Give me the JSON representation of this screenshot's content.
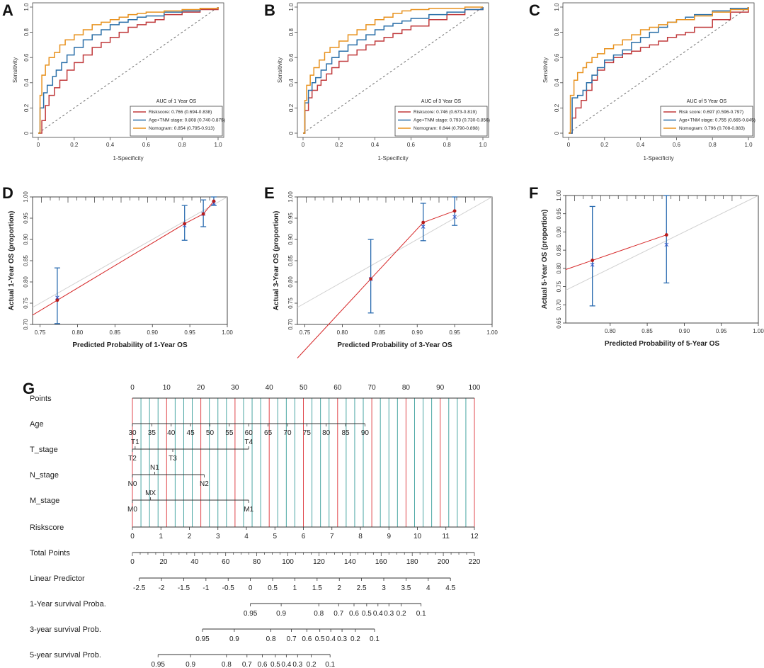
{
  "colors": {
    "risk": "#c0393b",
    "age": "#2a6fa8",
    "nomo": "#e8921f",
    "cal_line": "#d62728",
    "cal_bar": "#2b6cb0",
    "ideal": "#d0d0d0",
    "nomo_red": "#e0474c",
    "nomo_teal": "#4aa6a3"
  },
  "roc": [
    {
      "panel": "A",
      "ylabel": "Sensitivity",
      "xlabel": "1-Specificity",
      "legend_title": "AUC of 1 Year OS",
      "ticks": [
        "0",
        "0.2",
        "0.4",
        "0.6",
        "0.8",
        "1.0"
      ],
      "series": [
        {
          "key": "risk",
          "label": "Riskscore: 0.766 (0.694-0.838)",
          "x": [
            0,
            0.02,
            0.04,
            0.06,
            0.09,
            0.12,
            0.16,
            0.2,
            0.25,
            0.3,
            0.35,
            0.4,
            0.45,
            0.5,
            0.55,
            0.6,
            0.65,
            0.7,
            0.8,
            0.9,
            1.0
          ],
          "y": [
            0,
            0.1,
            0.22,
            0.3,
            0.36,
            0.42,
            0.5,
            0.56,
            0.62,
            0.68,
            0.72,
            0.76,
            0.8,
            0.84,
            0.86,
            0.88,
            0.9,
            0.94,
            0.96,
            0.98,
            1.0
          ]
        },
        {
          "key": "age",
          "label": "Age+TNM stage: 0.808 (0.740-0.875)",
          "x": [
            0,
            0.01,
            0.03,
            0.05,
            0.08,
            0.1,
            0.13,
            0.16,
            0.2,
            0.25,
            0.3,
            0.35,
            0.4,
            0.45,
            0.5,
            0.55,
            0.6,
            0.7,
            0.8,
            0.9,
            1.0
          ],
          "y": [
            0,
            0.2,
            0.32,
            0.38,
            0.45,
            0.5,
            0.56,
            0.62,
            0.68,
            0.74,
            0.78,
            0.82,
            0.86,
            0.88,
            0.9,
            0.92,
            0.93,
            0.96,
            0.97,
            0.99,
            1.0
          ]
        },
        {
          "key": "nomo",
          "label": "Nomogram: 0.854 (0.795-0.913)",
          "x": [
            0,
            0.01,
            0.02,
            0.04,
            0.06,
            0.09,
            0.12,
            0.15,
            0.2,
            0.25,
            0.3,
            0.35,
            0.4,
            0.45,
            0.5,
            0.55,
            0.6,
            0.7,
            0.8,
            0.9,
            1.0
          ],
          "y": [
            0,
            0.3,
            0.46,
            0.54,
            0.6,
            0.64,
            0.7,
            0.74,
            0.78,
            0.82,
            0.86,
            0.88,
            0.9,
            0.92,
            0.94,
            0.95,
            0.96,
            0.97,
            0.98,
            0.99,
            1.0
          ]
        }
      ]
    },
    {
      "panel": "B",
      "ylabel": "Sensitivity",
      "xlabel": "1-Specificity",
      "legend_title": "AUC of 3 Year OS",
      "ticks": [
        "0",
        "0.2",
        "0.4",
        "0.6",
        "0.8",
        "1.0"
      ],
      "series": [
        {
          "key": "risk",
          "label": "Riskscore: 0.746 (0.673-0.819)",
          "x": [
            0,
            0.01,
            0.03,
            0.05,
            0.08,
            0.1,
            0.13,
            0.16,
            0.2,
            0.25,
            0.3,
            0.35,
            0.4,
            0.45,
            0.5,
            0.55,
            0.6,
            0.7,
            0.8,
            0.9,
            1.0
          ],
          "y": [
            0,
            0.18,
            0.28,
            0.34,
            0.38,
            0.42,
            0.47,
            0.52,
            0.57,
            0.62,
            0.66,
            0.7,
            0.73,
            0.76,
            0.79,
            0.82,
            0.85,
            0.9,
            0.94,
            0.98,
            1.0
          ]
        },
        {
          "key": "age",
          "label": "Age+TNM stage: 0.793 (0.730-0.856)",
          "x": [
            0,
            0.01,
            0.03,
            0.05,
            0.07,
            0.1,
            0.13,
            0.16,
            0.2,
            0.25,
            0.3,
            0.35,
            0.4,
            0.45,
            0.5,
            0.55,
            0.6,
            0.7,
            0.8,
            0.9,
            1.0
          ],
          "y": [
            0,
            0.24,
            0.34,
            0.4,
            0.44,
            0.5,
            0.55,
            0.6,
            0.65,
            0.7,
            0.74,
            0.78,
            0.82,
            0.85,
            0.87,
            0.89,
            0.91,
            0.94,
            0.96,
            0.98,
            1.0
          ]
        },
        {
          "key": "nomo",
          "label": "Nomogram: 0.844 (0.790-0.898)",
          "x": [
            0,
            0.01,
            0.02,
            0.04,
            0.06,
            0.09,
            0.12,
            0.15,
            0.2,
            0.25,
            0.3,
            0.35,
            0.4,
            0.45,
            0.5,
            0.55,
            0.6,
            0.7,
            0.8,
            0.9,
            1.0
          ],
          "y": [
            0,
            0.26,
            0.38,
            0.46,
            0.52,
            0.58,
            0.64,
            0.68,
            0.73,
            0.78,
            0.82,
            0.86,
            0.9,
            0.92,
            0.95,
            0.97,
            0.98,
            0.99,
            0.99,
            1.0,
            1.0
          ]
        }
      ]
    },
    {
      "panel": "C",
      "ylabel": "Sensitivity",
      "xlabel": "1-Specificity",
      "legend_title": "AUC of 5 Year OS",
      "ticks": [
        "0",
        "0.2",
        "0.4",
        "0.6",
        "0.8",
        "1.0"
      ],
      "series": [
        {
          "key": "risk",
          "label": "Risk score: 0.697 (0.596-0.797)",
          "x": [
            0,
            0.02,
            0.04,
            0.07,
            0.1,
            0.13,
            0.16,
            0.2,
            0.25,
            0.3,
            0.35,
            0.4,
            0.45,
            0.5,
            0.55,
            0.6,
            0.65,
            0.7,
            0.8,
            0.9,
            1.0
          ],
          "y": [
            0,
            0.12,
            0.2,
            0.26,
            0.34,
            0.42,
            0.5,
            0.56,
            0.6,
            0.63,
            0.65,
            0.68,
            0.7,
            0.73,
            0.76,
            0.78,
            0.8,
            0.84,
            0.9,
            0.96,
            1.0
          ]
        },
        {
          "key": "age",
          "label": "Age+TNM stage: 0.755 (0.665-0.845)",
          "x": [
            0,
            0.02,
            0.05,
            0.08,
            0.1,
            0.13,
            0.16,
            0.2,
            0.25,
            0.3,
            0.35,
            0.4,
            0.45,
            0.5,
            0.55,
            0.6,
            0.65,
            0.7,
            0.8,
            0.9,
            1.0
          ],
          "y": [
            0,
            0.28,
            0.3,
            0.34,
            0.4,
            0.46,
            0.52,
            0.58,
            0.62,
            0.66,
            0.72,
            0.76,
            0.8,
            0.84,
            0.88,
            0.9,
            0.92,
            0.94,
            0.97,
            0.99,
            1.0
          ]
        },
        {
          "key": "nomo",
          "label": "Nomogram: 0.796 (0.708-0.883)",
          "x": [
            0,
            0.01,
            0.03,
            0.05,
            0.08,
            0.1,
            0.13,
            0.16,
            0.2,
            0.25,
            0.3,
            0.35,
            0.4,
            0.45,
            0.5,
            0.55,
            0.6,
            0.7,
            0.8,
            0.9,
            1.0
          ],
          "y": [
            0,
            0.3,
            0.42,
            0.48,
            0.52,
            0.56,
            0.6,
            0.63,
            0.67,
            0.7,
            0.74,
            0.78,
            0.82,
            0.84,
            0.86,
            0.88,
            0.9,
            0.93,
            0.96,
            0.98,
            1.0
          ]
        }
      ]
    }
  ],
  "calibration": [
    {
      "panel": "D",
      "ylabel": "Actual 1-Year OS (proportion)",
      "xlabel": "Predicted Probability of 1-Year OS",
      "xlim": [
        0.74,
        1.0
      ],
      "ylim": [
        0.7,
        1.0
      ],
      "xticks": [
        "0.75",
        "0.80",
        "0.85",
        "0.90",
        "0.95",
        "1.00"
      ],
      "yticks": [
        "0.70",
        "0.75",
        "0.80",
        "0.85",
        "0.90",
        "0.95",
        "1.00"
      ],
      "points": [
        {
          "x": 0.773,
          "y": 0.757,
          "lo": 0.702,
          "hi": 0.833,
          "ex": 0.763
        },
        {
          "x": 0.943,
          "y": 0.937,
          "lo": 0.898,
          "hi": 0.98,
          "ex": 0.933
        },
        {
          "x": 0.968,
          "y": 0.96,
          "lo": 0.93,
          "hi": 0.993,
          "ex": 0.96
        },
        {
          "x": 0.982,
          "y": 0.99,
          "lo": 0.98,
          "hi": 1.0,
          "ex": 0.985
        }
      ]
    },
    {
      "panel": "E",
      "ylabel": "Actual 3-Year OS (proportion)",
      "xlabel": "Predicted Probability of 3-Year OS",
      "xlim": [
        0.74,
        1.0
      ],
      "ylim": [
        0.7,
        1.0
      ],
      "xticks": [
        "0.75",
        "0.80",
        "0.85",
        "0.90",
        "0.95",
        "1.00"
      ],
      "yticks": [
        "0.70",
        "0.75",
        "0.80",
        "0.85",
        "0.90",
        "0.95",
        "1.00"
      ],
      "points": [
        {
          "x": 0.838,
          "y": 0.807,
          "lo": 0.727,
          "hi": 0.9,
          "ex": 0.807
        },
        {
          "x": 0.908,
          "y": 0.94,
          "lo": 0.897,
          "hi": 0.985,
          "ex": 0.93
        },
        {
          "x": 0.95,
          "y": 0.967,
          "lo": 0.933,
          "hi": 1.0,
          "ex": 0.953
        }
      ]
    },
    {
      "panel": "F",
      "ylabel": "Actual 5-Year OS (proportion)",
      "xlabel": "Predicted Probability of 5-Year OS",
      "xlim": [
        0.74,
        1.0
      ],
      "ylim": [
        0.65,
        1.0
      ],
      "xticks": [
        "0.80",
        "0.85",
        "0.90",
        "0.95",
        "1.00"
      ],
      "yticks": [
        "0.65",
        "0.70",
        "0.75",
        "0.80",
        "0.85",
        "0.90",
        "0.95",
        "1.00"
      ],
      "points": [
        {
          "x": 0.776,
          "y": 0.822,
          "lo": 0.697,
          "hi": 0.97,
          "ex": 0.81
        },
        {
          "x": 0.876,
          "y": 0.892,
          "lo": 0.76,
          "hi": 1.0,
          "ex": 0.865
        }
      ]
    }
  ],
  "chart_data": {
    "type": "nomogram",
    "panel": "G",
    "points_ticks": [
      "0",
      "10",
      "20",
      "30",
      "40",
      "50",
      "60",
      "70",
      "80",
      "90",
      "100"
    ],
    "rows": [
      {
        "name": "Points"
      },
      {
        "name": "Age",
        "ticks": [
          "30",
          "35",
          "40",
          "45",
          "50",
          "55",
          "60",
          "65",
          "70",
          "75",
          "80",
          "85",
          "90"
        ]
      },
      {
        "name": "T_stage",
        "labels_top": [
          "T1",
          "T4"
        ],
        "labels_bottom": [
          "T2",
          "T3"
        ]
      },
      {
        "name": "N_stage",
        "labels_top": [
          "N1"
        ],
        "labels_bottom": [
          "N0",
          "N2"
        ]
      },
      {
        "name": "M_stage",
        "labels_top": [
          "MX"
        ],
        "labels_bottom": [
          "M0",
          "M1"
        ]
      },
      {
        "name": "Riskscore",
        "ticks": [
          "0",
          "1",
          "2",
          "3",
          "4",
          "5",
          "6",
          "7",
          "8",
          "9",
          "10",
          "11",
          "12"
        ]
      },
      {
        "name": "Total Points",
        "ticks": [
          "0",
          "20",
          "40",
          "60",
          "80",
          "100",
          "120",
          "140",
          "160",
          "180",
          "200",
          "220"
        ]
      },
      {
        "name": "Linear Predictor",
        "ticks": [
          "-2.5",
          "-2",
          "-1.5",
          "-1",
          "-0.5",
          "0",
          "0.5",
          "1",
          "1.5",
          "2",
          "2.5",
          "3",
          "3.5",
          "4",
          "4.5"
        ]
      },
      {
        "name": "1-Year survival Proba.",
        "ticks": [
          "0.95",
          "0.9",
          "0.8",
          "0.7",
          "0.6",
          "0.5",
          "0.4",
          "0.3",
          "0.2",
          "0.1"
        ]
      },
      {
        "name": "3-year survival Prob.",
        "ticks": [
          "0.95",
          "0.9",
          "0.8",
          "0.7",
          "0.6",
          "0.5",
          "0.4",
          "0.3",
          "0.2",
          "0.1"
        ]
      },
      {
        "name": "5-year survival Prob.",
        "ticks": [
          "0.95",
          "0.9",
          "0.8",
          "0.7",
          "0.6",
          "0.5",
          "0.4",
          "0.3",
          "0.2",
          "0.1"
        ]
      }
    ]
  }
}
